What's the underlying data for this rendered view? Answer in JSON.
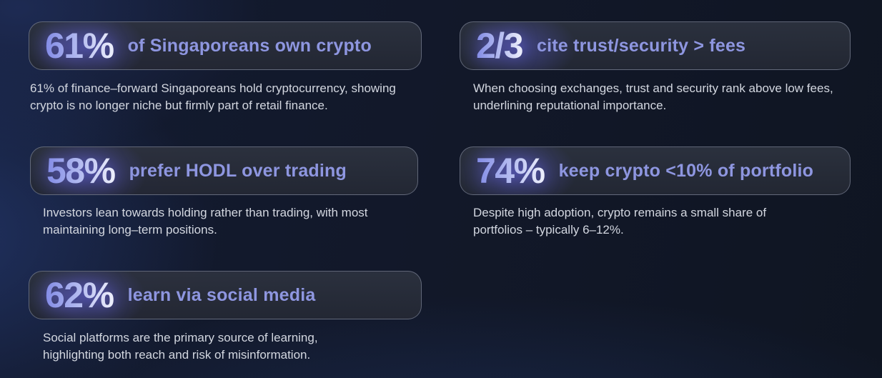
{
  "colors": {
    "page_background": "#121829",
    "card_background": "#2a2f3b",
    "card_border": "#98a0b4",
    "stat_gradient_start": "#828be6",
    "stat_gradient_end": "#eef0fc",
    "stat_glow": "#7a74ff",
    "headline_text": "#8e96e0",
    "description_text": "#d3d7e0"
  },
  "cards": [
    {
      "stat": "61%",
      "headline": "of Singaporeans own crypto",
      "description": "61% of finance–forward Singaporeans hold cryptocurrency, showing crypto is no longer niche but firmly part of retail finance."
    },
    {
      "stat": "2/3",
      "headline": "cite trust/security > fees",
      "description": "When choosing exchanges, trust and security rank above low fees, underlining reputational importance."
    },
    {
      "stat": "58%",
      "headline": "prefer HODL over trading",
      "description": "Investors lean towards holding rather than trading, with most maintaining long–term positions."
    },
    {
      "stat": "74%",
      "headline": "keep crypto <10% of portfolio",
      "description": "Despite high adoption, crypto remains a small share of portfolios – typically 6–12%."
    },
    {
      "stat": "62%",
      "headline": "learn via social media",
      "description": "Social platforms are the primary source of learning, highlighting both reach and risk of misinformation."
    }
  ],
  "chart_data": {
    "type": "table",
    "title": "",
    "items": [
      {
        "value": "61%",
        "value_numeric": 61,
        "label": "of Singaporeans own crypto"
      },
      {
        "value": "2/3",
        "value_numeric": 66.7,
        "label": "cite trust/security > fees"
      },
      {
        "value": "58%",
        "value_numeric": 58,
        "label": "prefer HODL over trading"
      },
      {
        "value": "74%",
        "value_numeric": 74,
        "label": "keep crypto <10% of portfolio"
      },
      {
        "value": "62%",
        "value_numeric": 62,
        "label": "learn via social media"
      }
    ]
  }
}
